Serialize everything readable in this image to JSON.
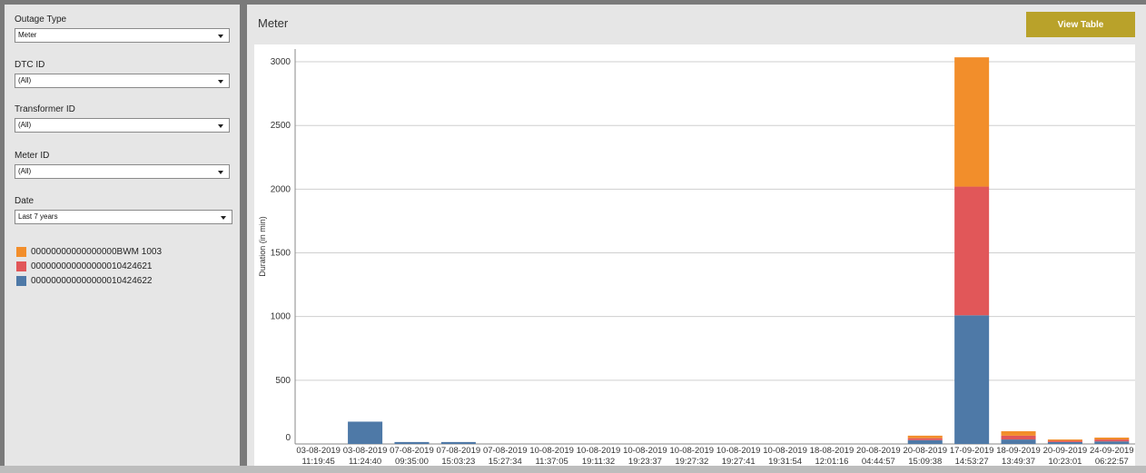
{
  "filters": {
    "outage_type": {
      "label": "Outage Type",
      "value": "Meter"
    },
    "dtc_id": {
      "label": "DTC ID",
      "value": "(All)"
    },
    "transformer_id": {
      "label": "Transformer ID",
      "value": "(All)"
    },
    "meter_id": {
      "label": "Meter ID",
      "value": "(All)"
    },
    "date": {
      "label": "Date",
      "value": "Last 7 years"
    }
  },
  "legend": [
    {
      "label": "00000000000000000BWM 1003",
      "color": "#f28e2b"
    },
    {
      "label": "000000000000000010424621",
      "color": "#e15759"
    },
    {
      "label": "000000000000000010424622",
      "color": "#4e79a7"
    }
  ],
  "main": {
    "title": "Meter",
    "view_table_label": "View Table"
  },
  "chart_data": {
    "type": "bar",
    "stacked": true,
    "ylabel": "Duration (in min)",
    "xlabel": "",
    "ylim": [
      0,
      3100
    ],
    "yticks": [
      0,
      500,
      1000,
      1500,
      2000,
      2500,
      3000
    ],
    "grid": true,
    "categories": [
      [
        "03-08-2019",
        "11:19:45"
      ],
      [
        "03-08-2019",
        "11:24:40"
      ],
      [
        "07-08-2019",
        "09:35:00"
      ],
      [
        "07-08-2019",
        "15:03:23"
      ],
      [
        "07-08-2019",
        "15:27:34"
      ],
      [
        "10-08-2019",
        "11:37:05"
      ],
      [
        "10-08-2019",
        "19:11:32"
      ],
      [
        "10-08-2019",
        "19:23:37"
      ],
      [
        "10-08-2019",
        "19:27:32"
      ],
      [
        "10-08-2019",
        "19:27:41"
      ],
      [
        "10-08-2019",
        "19:31:54"
      ],
      [
        "18-08-2019",
        "12:01:16"
      ],
      [
        "20-08-2019",
        "04:44:57"
      ],
      [
        "20-08-2019",
        "15:09:38"
      ],
      [
        "17-09-2019",
        "14:53:27"
      ],
      [
        "18-09-2019",
        "13:49:37"
      ],
      [
        "20-09-2019",
        "10:23:01"
      ],
      [
        "24-09-2019",
        "06:22:57"
      ]
    ],
    "series": [
      {
        "name": "000000000000000010424622",
        "color": "#4e79a7",
        "values": [
          0,
          175,
          15,
          15,
          0,
          0,
          0,
          0,
          0,
          0,
          0,
          0,
          0,
          30,
          1010,
          35,
          15,
          20
        ]
      },
      {
        "name": "000000000000000010424621",
        "color": "#e15759",
        "values": [
          0,
          0,
          0,
          0,
          0,
          0,
          0,
          0,
          0,
          0,
          0,
          0,
          0,
          15,
          1010,
          30,
          10,
          15
        ]
      },
      {
        "name": "00000000000000000BWM 1003",
        "color": "#f28e2b",
        "values": [
          0,
          0,
          0,
          0,
          0,
          0,
          0,
          0,
          0,
          0,
          0,
          0,
          0,
          20,
          1015,
          35,
          10,
          15
        ]
      }
    ]
  }
}
